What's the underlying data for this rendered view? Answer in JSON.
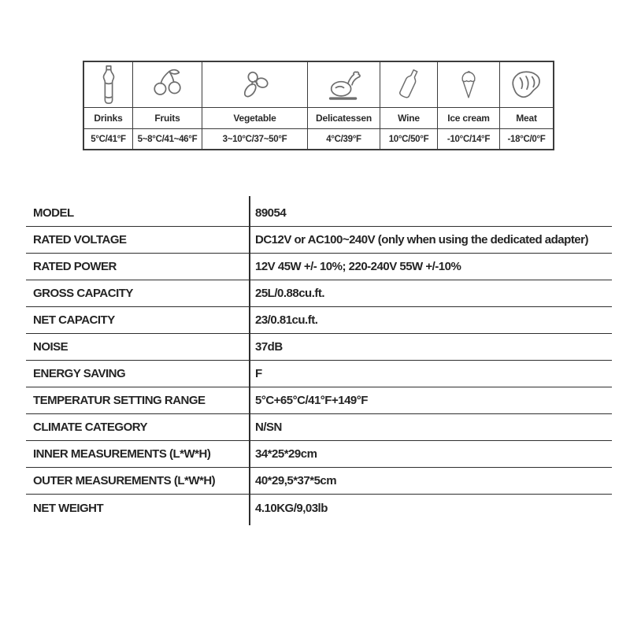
{
  "food_guide": {
    "columns": [
      {
        "icon": "bottle-icon",
        "label": "Drinks",
        "temp": "5°C/41°F"
      },
      {
        "icon": "cherries-icon",
        "label": "Fruits",
        "temp": "5~8°C/41~46°F"
      },
      {
        "icon": "vegetable-icon",
        "label": "Vegetable",
        "temp": "3~10°C/37~50°F"
      },
      {
        "icon": "roast-chicken-icon",
        "label": "Delicatessen",
        "temp": "4°C/39°F"
      },
      {
        "icon": "wine-bottle-icon",
        "label": "Wine",
        "temp": "10°C/50°F"
      },
      {
        "icon": "ice-cream-icon",
        "label": "Ice cream",
        "temp": "-10°C/14°F"
      },
      {
        "icon": "steak-icon",
        "label": "Meat",
        "temp": "-18°C/0°F"
      }
    ]
  },
  "specs": {
    "rows": [
      {
        "label": "MODEL",
        "value": "89054"
      },
      {
        "label": "RATED VOLTAGE",
        "value": "DC12V or AC100~240V (only when using the dedicated adapter)"
      },
      {
        "label": "RATED POWER",
        "value": "12V 45W +/- 10%; 220-240V 55W +/-10%"
      },
      {
        "label": "GROSS CAPACITY",
        "value": "25L/0.88cu.ft."
      },
      {
        "label": "NET CAPACITY",
        "value": "23/0.81cu.ft."
      },
      {
        "label": "NOISE",
        "value": "37dB"
      },
      {
        "label": "ENERGY SAVING",
        "value": "F"
      },
      {
        "label": "TEMPERATUR SETTING RANGE",
        "value": "5°C+65°C/41°F+149°F"
      },
      {
        "label": "CLIMATE CATEGORY",
        "value": "N/SN"
      },
      {
        "label": "INNER MEASUREMENTS (L*W*H)",
        "value": "34*25*29cm"
      },
      {
        "label": "OUTER MEASUREMENTS (L*W*H)",
        "value": "40*29,5*37*5cm"
      },
      {
        "label": "NET WEIGHT",
        "value": "4.10KG/9,03lb"
      }
    ]
  },
  "colors": {
    "table_border": "#3c3c3c",
    "spec_line": "#2e2e2e",
    "text": "#242424",
    "icon_stroke": "#6e6e6e",
    "background": "#ffffff"
  }
}
